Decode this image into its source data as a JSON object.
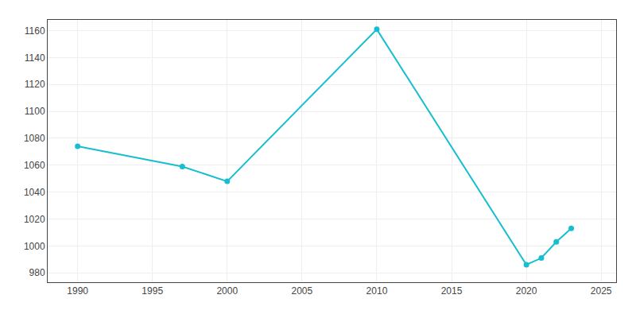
{
  "chart_data": {
    "type": "line",
    "x": [
      1990,
      1997,
      2000,
      2010,
      2020,
      2021,
      2022,
      2023
    ],
    "values": [
      1074,
      1059,
      1048,
      1161,
      986,
      991,
      1003,
      1013
    ],
    "color": "#17becf",
    "marker": "circle",
    "xlim": [
      1988,
      2026
    ],
    "ylim": [
      973,
      1168
    ],
    "xticks": [
      1990,
      1995,
      2000,
      2005,
      2010,
      2015,
      2020,
      2025
    ],
    "yticks": [
      980,
      1000,
      1020,
      1040,
      1060,
      1080,
      1100,
      1120,
      1140,
      1160
    ],
    "grid": true
  }
}
